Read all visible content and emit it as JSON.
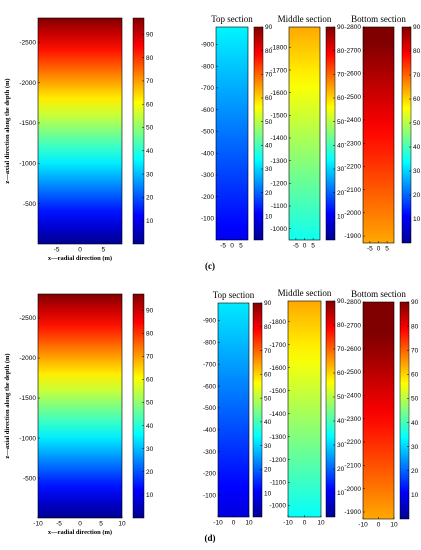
{
  "colors": {
    "jet": [
      "#00008f",
      "#0000ff",
      "#0080ff",
      "#00ffff",
      "#80ff80",
      "#ffff00",
      "#ff8000",
      "#ff0000",
      "#800000"
    ]
  },
  "figure": {
    "panel_labels": [
      "(c)",
      "(d)"
    ]
  },
  "chart_data": [
    {
      "type": "heatmap",
      "panel": "(c) full domain",
      "title": "",
      "xlabel": "x—radial direction (m)",
      "ylabel": "z—axial direction along the depth (m)",
      "xlim": [
        -9,
        9
      ],
      "ylim": [
        -2800,
        -1
      ],
      "xticks": [
        -5,
        0,
        5
      ],
      "yticks": [
        -500,
        -1000,
        -1500,
        -2000,
        -2500
      ],
      "z_range": [
        0,
        97
      ],
      "colorbar_ticks": [
        10,
        20,
        30,
        40,
        50,
        60,
        70,
        80,
        90
      ],
      "profile_depths": [
        -1,
        -2800
      ],
      "profile_values": [
        0,
        97
      ]
    },
    {
      "type": "heatmap",
      "panel": "(c) top",
      "title": "Top section",
      "xlim": [
        -9,
        9
      ],
      "ylim": [
        -980,
        -1
      ],
      "xticks": [
        -5,
        0,
        5
      ],
      "yticks": [
        -100,
        -200,
        -300,
        -400,
        -500,
        -600,
        -700,
        -800,
        -900
      ],
      "z_range": [
        0,
        90
      ],
      "colorbar_ticks": [
        10,
        20,
        30,
        40,
        50,
        60,
        70,
        80,
        90
      ],
      "profile_depths": [
        -1,
        -980
      ],
      "profile_values": [
        10,
        33
      ]
    },
    {
      "type": "heatmap",
      "panel": "(c) middle",
      "title": "Middle section",
      "xlim": [
        -9,
        9
      ],
      "ylim": [
        -1890,
        -950
      ],
      "xticks": [
        -5,
        0,
        5
      ],
      "yticks": [
        -1000,
        -1100,
        -1200,
        -1300,
        -1400,
        -1500,
        -1600,
        -1700,
        -1800
      ],
      "z_range": [
        0,
        90
      ],
      "colorbar_ticks": [
        10,
        20,
        30,
        40,
        50,
        60,
        70,
        80,
        90
      ],
      "profile_depths": [
        -950,
        -1890
      ],
      "profile_values": [
        35,
        64
      ]
    },
    {
      "type": "heatmap",
      "panel": "(c) bottom",
      "title": "Bottom section",
      "xlim": [
        -9,
        9
      ],
      "ylim": [
        -2800,
        -1870
      ],
      "xticks": [
        -5,
        0,
        5
      ],
      "yticks": [
        -1900,
        -2000,
        -2100,
        -2200,
        -2300,
        -2400,
        -2500,
        -2600,
        -2700,
        -2800
      ],
      "z_range": [
        0,
        90
      ],
      "colorbar_ticks": [
        10,
        20,
        30,
        40,
        50,
        60,
        70,
        80,
        90
      ],
      "profile_depths": [
        -1870,
        -2800
      ],
      "profile_values": [
        64,
        92
      ]
    },
    {
      "type": "heatmap",
      "panel": "(d) full domain",
      "title": "",
      "xlabel": "x—radial direction (m)",
      "ylabel": "z—axial direction along the depth (m)",
      "xlim": [
        -10,
        10
      ],
      "ylim": [
        -2800,
        -1
      ],
      "xticks": [
        -10,
        -5,
        0,
        5,
        10
      ],
      "yticks": [
        -500,
        -1000,
        -1500,
        -2000,
        -2500
      ],
      "z_range": [
        0,
        97
      ],
      "colorbar_ticks": [
        10,
        20,
        30,
        40,
        50,
        60,
        70,
        80,
        90
      ],
      "profile_depths": [
        -1,
        -2800
      ],
      "profile_values": [
        0,
        97
      ]
    },
    {
      "type": "heatmap",
      "panel": "(d) top",
      "title": "Top section",
      "xlim": [
        -10,
        10
      ],
      "ylim": [
        -980,
        -1
      ],
      "xticks": [
        -10,
        0,
        10
      ],
      "yticks": [
        -100,
        -200,
        -300,
        -400,
        -500,
        -600,
        -700,
        -800,
        -900
      ],
      "z_range": [
        0,
        90
      ],
      "colorbar_ticks": [
        10,
        20,
        30,
        40,
        50,
        60,
        70,
        80,
        90
      ],
      "profile_depths": [
        -1,
        -980
      ],
      "profile_values": [
        8,
        32
      ]
    },
    {
      "type": "heatmap",
      "panel": "(d) middle",
      "title": "Middle section",
      "xlim": [
        -10,
        10
      ],
      "ylim": [
        -1890,
        -950
      ],
      "xticks": [
        -10,
        0,
        10
      ],
      "yticks": [
        -1000,
        -1100,
        -1200,
        -1300,
        -1400,
        -1500,
        -1600,
        -1700,
        -1800
      ],
      "z_range": [
        0,
        90
      ],
      "colorbar_ticks": [
        10,
        20,
        30,
        40,
        50,
        60,
        70,
        80,
        90
      ],
      "profile_depths": [
        -950,
        -1890
      ],
      "profile_values": [
        34,
        64
      ]
    },
    {
      "type": "heatmap",
      "panel": "(d) bottom",
      "title": "Bottom section",
      "xlim": [
        -10,
        10
      ],
      "ylim": [
        -2800,
        -1870
      ],
      "xticks": [
        -10,
        0,
        10
      ],
      "yticks": [
        -1900,
        -2000,
        -2100,
        -2200,
        -2300,
        -2400,
        -2500,
        -2600,
        -2700,
        -2800
      ],
      "z_range": [
        0,
        90
      ],
      "colorbar_ticks": [
        10,
        20,
        30,
        40,
        50,
        60,
        70,
        80,
        90
      ],
      "profile_depths": [
        -1870,
        -2800
      ],
      "profile_values": [
        64,
        95
      ]
    }
  ]
}
